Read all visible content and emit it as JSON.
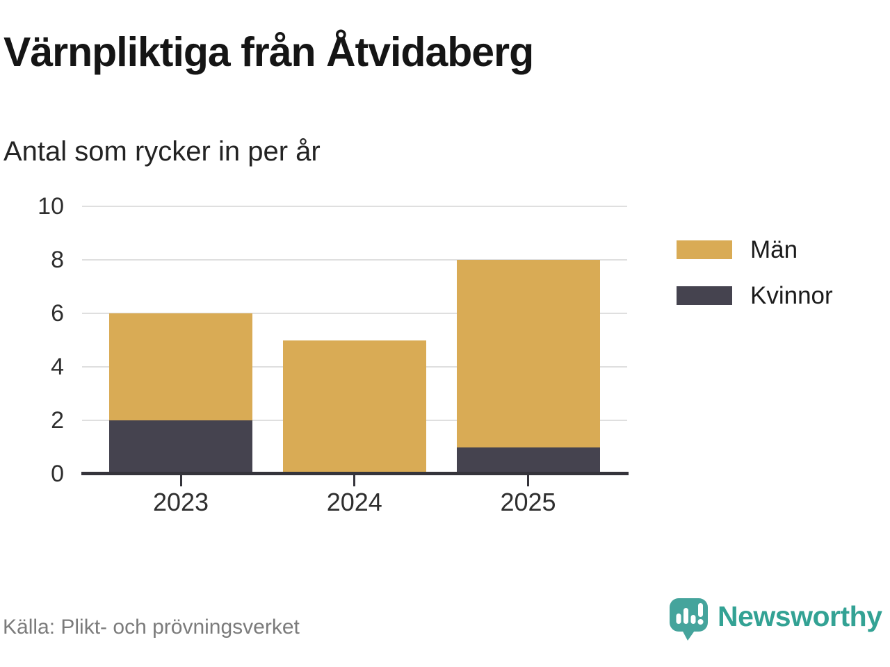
{
  "header": {
    "title": "Värnpliktiga från Åtvidaberg",
    "subtitle": "Antal som rycker in per år"
  },
  "chart_data": {
    "type": "bar",
    "stacked": true,
    "title": "Värnpliktiga från Åtvidaberg",
    "subtitle": "Antal som rycker in per år",
    "categories": [
      "2023",
      "2024",
      "2025"
    ],
    "series": [
      {
        "name": "Män",
        "color": "#D9AB55",
        "values": [
          4,
          5,
          7
        ]
      },
      {
        "name": "Kvinnor",
        "color": "#45434F",
        "values": [
          2,
          0,
          1
        ]
      }
    ],
    "stack_bottom_to_top": [
      "Kvinnor",
      "Män"
    ],
    "totals": [
      6,
      5,
      8
    ],
    "xlabel": "",
    "ylabel": "",
    "ylim": [
      0,
      10
    ],
    "yticks": [
      0,
      2,
      4,
      6,
      8,
      10
    ],
    "grid": "horizontal",
    "legend_position": "right"
  },
  "legend": {
    "items": [
      {
        "label": "Män",
        "color": "#D9AB55"
      },
      {
        "label": "Kvinnor",
        "color": "#45434F"
      }
    ]
  },
  "footer": {
    "source": "Källa: Plikt- och prövningsverket",
    "brand": "Newsworthy"
  },
  "colors": {
    "bar_men": "#D9AB55",
    "bar_women": "#45434F",
    "axis": "#35343B",
    "gridline": "#DFDFDF",
    "title_text": "#151515",
    "axis_text": "#2E2E2E",
    "muted_text": "#7B7B7B",
    "brand_teal": "#33A294"
  },
  "icons": {
    "brand_logo": "newsworthy-speech-bubble-bar-chart-icon"
  }
}
